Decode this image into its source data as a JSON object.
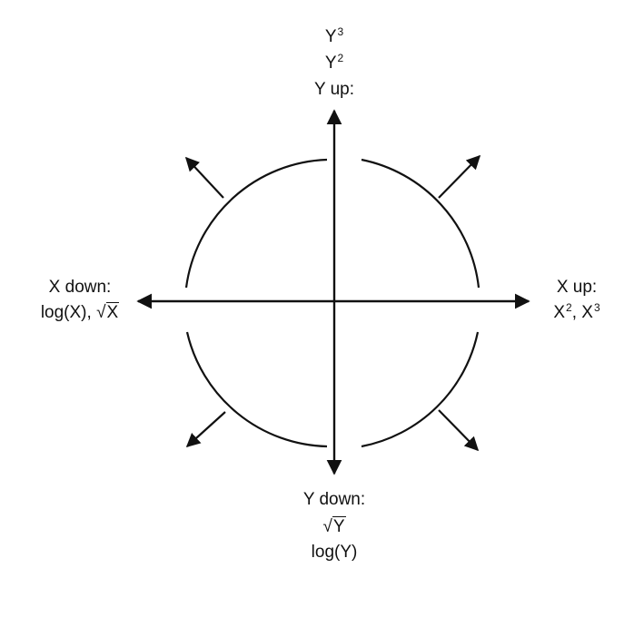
{
  "top_label": {
    "line1_base": "Y",
    "line1_exp": "3",
    "line2_base": "Y",
    "line2_exp": "2",
    "line3": "Y up:"
  },
  "bottom_label": {
    "line1": "Y down:",
    "line2_radical": "√",
    "line2_radicand": "Y",
    "line3": "log(Y)"
  },
  "left_label": {
    "line1": "X down:",
    "line2_prefix": "log(X), ",
    "line2_radical": "√",
    "line2_radicand": "X"
  },
  "right_label": {
    "line1": "X up:",
    "line2_base1": "X",
    "line2_exp1": "2",
    "line2_sep": ", ",
    "line2_base2": "X",
    "line2_exp2": "3"
  }
}
